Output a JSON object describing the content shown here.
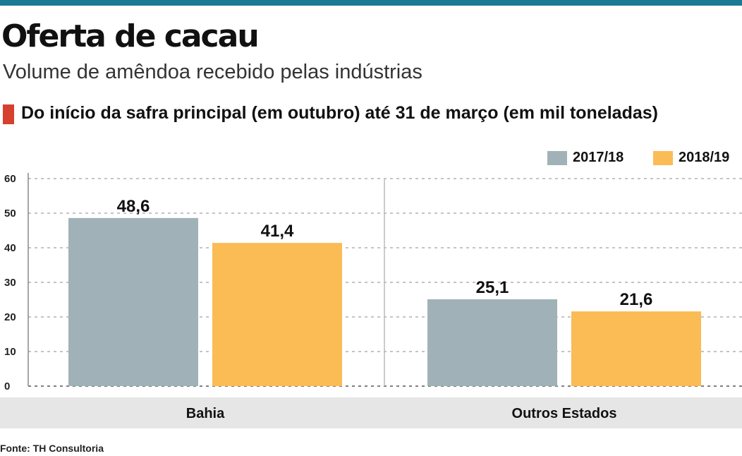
{
  "header": {
    "title": "Oferta de cacau",
    "subtitle": "Volume de amêndoa recebido pelas indústrias",
    "note": "Do início da safra principal (em outubro) até 31 de março (em mil toneladas)"
  },
  "footer": {
    "source": "Fonte: TH Consultoria"
  },
  "colors": {
    "accent": "#1b7a93",
    "marker": "#d6402e"
  },
  "chart_data": {
    "type": "bar",
    "categories": [
      "Bahia",
      "Outros Estados"
    ],
    "series": [
      {
        "name": "2017/18",
        "values": [
          48.6,
          25.1
        ],
        "labels": [
          "48,6",
          "25,1"
        ],
        "color": "#a1b1b8"
      },
      {
        "name": "2018/19",
        "values": [
          41.4,
          21.6
        ],
        "labels": [
          "41,4",
          "21,6"
        ],
        "color": "#fbbb55"
      }
    ],
    "ylim": [
      0,
      60
    ],
    "yticks": [
      0,
      10,
      20,
      30,
      40,
      50,
      60
    ],
    "grid": true,
    "legend": "top-right"
  }
}
